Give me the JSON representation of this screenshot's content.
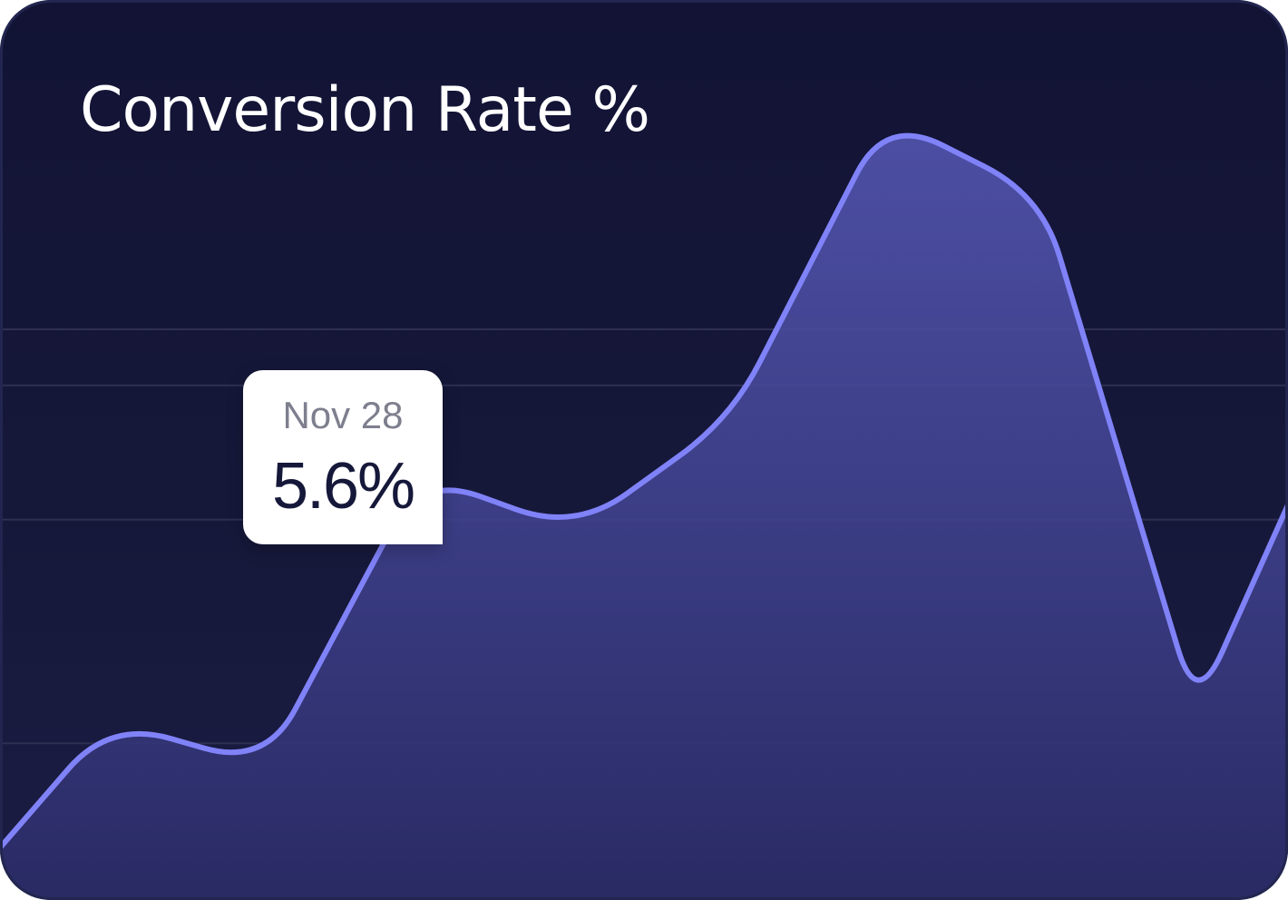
{
  "colors": {
    "background": "#131434",
    "line": "#8082f8",
    "fill_top": "#5658b6",
    "fill_bottom": "#2a2b66",
    "grid": "#2e3052",
    "tooltip_bg": "#ffffff",
    "tooltip_date": "#7e7f8e",
    "tooltip_value": "#16183a"
  },
  "chart_data": {
    "type": "area",
    "title": "Conversion Rate %",
    "xlabel": "",
    "ylabel": "",
    "grid": true,
    "legend": "none",
    "x": [
      0,
      1,
      2,
      3,
      4,
      5,
      6,
      7,
      8,
      9
    ],
    "series": [
      {
        "values": [
          2.0,
          3.6,
          3.2,
          5.8,
          5.3,
          6.3,
          9.0,
          8.3,
          3.7,
          6.8
        ]
      }
    ],
    "ylim": [
      2.0,
      9.2
    ],
    "gridlines": [
      3.4,
      5.4,
      6.6,
      7.1
    ],
    "highlight": {
      "date": "Nov 28",
      "value_label": "5.6%"
    }
  }
}
